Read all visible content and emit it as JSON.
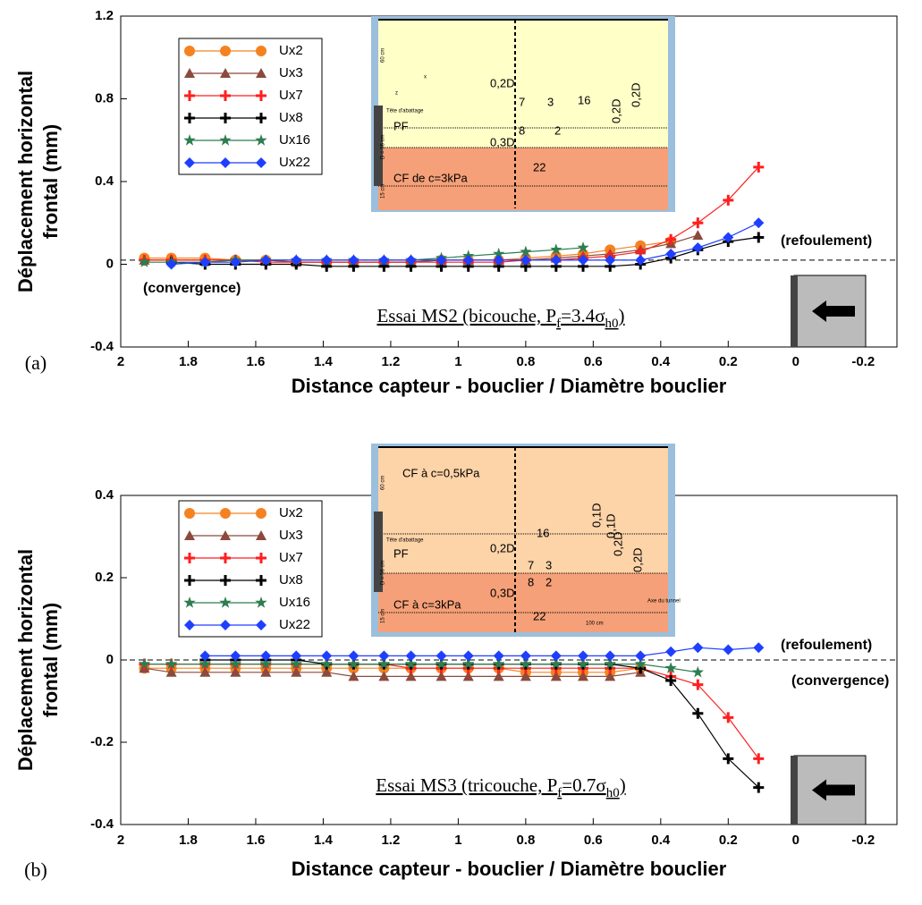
{
  "chart_data": [
    {
      "type": "line",
      "panel_label": "(a)",
      "title_parts": [
        "Essai MS2 (bicouche, P",
        "f",
        "=3.4σ",
        "h0",
        ")"
      ],
      "xlabel": "Distance capteur - bouclier / Diamètre bouclier",
      "ylabel": [
        "Déplacement horizontal",
        "frontal (mm)"
      ],
      "xlim": [
        2,
        -0.3
      ],
      "ylim": [
        -0.4,
        1.2
      ],
      "xticks": [
        2,
        1.8,
        1.6,
        1.4,
        1.2,
        1,
        0.8,
        0.6,
        0.4,
        0.2,
        0,
        -0.2
      ],
      "yticks": [
        -0.4,
        0,
        0.4,
        0.8,
        1.2
      ],
      "reference_line": 0.02,
      "annotations": [
        "(refoulement)",
        "(convergence)"
      ],
      "inset_texts": [
        "PF",
        "CF de c=3kPa",
        "0,2D",
        "0,3D",
        "7",
        "3",
        "16",
        "8",
        "2",
        "22",
        "0,2D",
        "0,2D",
        "Tête d'abattage",
        "60 cm",
        "D = 56 cm",
        "15 cm",
        "x",
        "z"
      ],
      "x": [
        1.93,
        1.85,
        1.75,
        1.66,
        1.57,
        1.48,
        1.39,
        1.31,
        1.22,
        1.14,
        1.05,
        0.97,
        0.88,
        0.8,
        0.71,
        0.63,
        0.55,
        0.46,
        0.37,
        0.29,
        0.2,
        0.11
      ],
      "series": [
        {
          "name": "Ux2",
          "color": "#f58220",
          "marker": "circle",
          "values": [
            0.03,
            0.03,
            0.03,
            0.02,
            0.02,
            0.01,
            0.01,
            0.01,
            0.01,
            0.01,
            0.02,
            0.02,
            0.02,
            0.03,
            0.04,
            0.05,
            0.07,
            0.09,
            0.11,
            null,
            null,
            null
          ]
        },
        {
          "name": "Ux3",
          "color": "#8b4a3c",
          "marker": "triangle",
          "values": [
            0.02,
            0.02,
            0.02,
            0.02,
            0.02,
            0.01,
            0.01,
            0.01,
            0.01,
            0.01,
            0.02,
            0.02,
            0.02,
            0.02,
            0.03,
            0.04,
            0.05,
            0.07,
            0.1,
            0.14,
            null,
            null
          ]
        },
        {
          "name": "Ux7",
          "color": "#ff1f1f",
          "marker": "plus",
          "values": [
            0.02,
            0.02,
            0.02,
            0.02,
            0.01,
            0.01,
            0.01,
            0.01,
            0.01,
            0.01,
            0.01,
            0.01,
            0.01,
            0.02,
            0.02,
            0.03,
            0.04,
            0.06,
            0.12,
            0.2,
            0.31,
            0.47
          ]
        },
        {
          "name": "Ux8",
          "color": "#000000",
          "marker": "plus",
          "values": [
            null,
            0.01,
            0,
            0,
            0,
            0,
            -0.01,
            -0.01,
            -0.01,
            -0.01,
            -0.01,
            -0.01,
            -0.01,
            -0.01,
            -0.01,
            -0.01,
            -0.01,
            0,
            0.03,
            0.07,
            0.11,
            0.13
          ]
        },
        {
          "name": "Ux16",
          "color": "#2e7d4f",
          "marker": "star",
          "values": [
            0.01,
            0.01,
            0.01,
            0.02,
            0.02,
            0.02,
            0.02,
            0.02,
            0.02,
            0.02,
            0.03,
            0.04,
            0.05,
            0.06,
            0.07,
            0.08,
            null,
            null,
            null,
            null,
            null,
            null
          ]
        },
        {
          "name": "Ux22",
          "color": "#1f3fff",
          "marker": "diamond",
          "values": [
            null,
            0,
            0.01,
            0.01,
            0.02,
            0.02,
            0.02,
            0.02,
            0.02,
            0.02,
            0.02,
            0.02,
            0.02,
            0.02,
            0.02,
            0.02,
            0.02,
            0.02,
            0.05,
            0.08,
            0.13,
            0.2
          ]
        }
      ]
    },
    {
      "type": "line",
      "panel_label": "(b)",
      "title_parts": [
        "Essai MS3 (tricouche, P",
        "f",
        "=0.7σ",
        "h0",
        ")"
      ],
      "xlabel": "Distance capteur - bouclier / Diamètre bouclier",
      "ylabel": [
        "Déplacement horizontal",
        "frontal (mm)"
      ],
      "xlim": [
        2,
        -0.3
      ],
      "ylim": [
        -0.4,
        0.4
      ],
      "xticks": [
        2,
        1.8,
        1.6,
        1.4,
        1.2,
        1,
        0.8,
        0.6,
        0.4,
        0.2,
        0,
        -0.2
      ],
      "yticks": [
        -0.4,
        -0.2,
        0,
        0.2,
        0.4
      ],
      "reference_line": 0,
      "annotations": [
        "(refoulement)",
        "(convergence)"
      ],
      "inset_texts": [
        "CF à c=0,5kPa",
        "PF",
        "CF à c=3kPa",
        "16",
        "0,2D",
        "7",
        "3",
        "8",
        "2",
        "0,3D",
        "22",
        "0,1D",
        "0,1D",
        "0,2D",
        "0,2D",
        "Axe du tunnel",
        "100 cm",
        "Tête d'abattage",
        "60 cm",
        "D = 56 cm",
        "15 cm"
      ],
      "x": [
        1.93,
        1.85,
        1.75,
        1.66,
        1.57,
        1.48,
        1.39,
        1.31,
        1.22,
        1.14,
        1.05,
        0.97,
        0.88,
        0.8,
        0.71,
        0.63,
        0.55,
        0.46,
        0.37,
        0.29,
        0.2,
        0.11
      ],
      "series": [
        {
          "name": "Ux2",
          "color": "#f58220",
          "marker": "circle",
          "values": [
            -0.02,
            -0.02,
            -0.02,
            -0.02,
            -0.02,
            -0.02,
            -0.02,
            -0.02,
            -0.02,
            -0.02,
            -0.02,
            -0.02,
            -0.02,
            -0.03,
            -0.03,
            -0.03,
            -0.03,
            -0.02,
            null,
            null,
            null,
            null
          ]
        },
        {
          "name": "Ux3",
          "color": "#8b4a3c",
          "marker": "triangle",
          "values": [
            -0.02,
            -0.03,
            -0.03,
            -0.03,
            -0.03,
            -0.03,
            -0.03,
            -0.04,
            -0.04,
            -0.04,
            -0.04,
            -0.04,
            -0.04,
            -0.04,
            -0.04,
            -0.04,
            -0.04,
            -0.03,
            null,
            null,
            null,
            null
          ]
        },
        {
          "name": "Ux7",
          "color": "#ff1f1f",
          "marker": "plus",
          "values": [
            -0.01,
            -0.01,
            -0.01,
            -0.01,
            -0.01,
            -0.01,
            -0.01,
            -0.01,
            -0.01,
            -0.02,
            -0.02,
            -0.02,
            -0.02,
            -0.02,
            -0.02,
            -0.02,
            -0.02,
            -0.02,
            -0.04,
            -0.06,
            -0.14,
            -0.24
          ]
        },
        {
          "name": "Ux8",
          "color": "#000000",
          "marker": "plus",
          "values": [
            null,
            null,
            0,
            0,
            0,
            0,
            -0.01,
            -0.01,
            -0.01,
            -0.01,
            -0.01,
            -0.01,
            -0.01,
            -0.01,
            -0.01,
            -0.01,
            -0.01,
            -0.02,
            -0.05,
            -0.13,
            -0.24,
            -0.31
          ]
        },
        {
          "name": "Ux16",
          "color": "#2e7d4f",
          "marker": "star",
          "values": [
            -0.01,
            -0.01,
            -0.01,
            -0.01,
            -0.01,
            -0.01,
            -0.01,
            -0.01,
            -0.01,
            -0.01,
            -0.01,
            -0.01,
            -0.01,
            -0.01,
            -0.01,
            -0.01,
            -0.01,
            -0.01,
            -0.02,
            -0.03,
            null,
            null
          ]
        },
        {
          "name": "Ux22",
          "color": "#1f3fff",
          "marker": "diamond",
          "values": [
            null,
            null,
            0.01,
            0.01,
            0.01,
            0.01,
            0.01,
            0.01,
            0.01,
            0.01,
            0.01,
            0.01,
            0.01,
            0.01,
            0.01,
            0.01,
            0.01,
            0.01,
            0.02,
            0.03,
            0.025,
            0.03
          ]
        }
      ]
    }
  ]
}
